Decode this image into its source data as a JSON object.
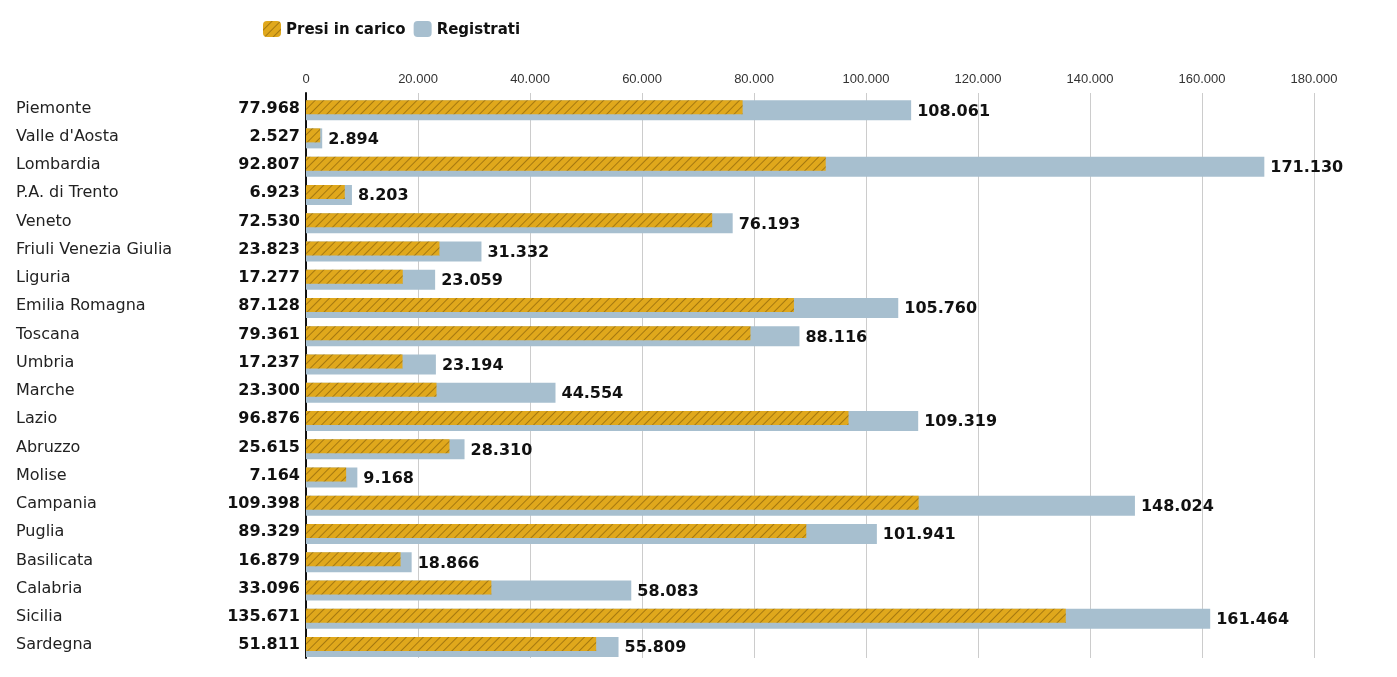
{
  "chart_data": {
    "type": "bar",
    "orientation": "horizontal",
    "categories": [
      "Piemonte",
      "Valle d'Aosta",
      "Lombardia",
      "P.A. di Trento",
      "Veneto",
      "Friuli Venezia Giulia",
      "Liguria",
      "Emilia Romagna",
      "Toscana",
      "Umbria",
      "Marche",
      "Lazio",
      "Abruzzo",
      "Molise",
      "Campania",
      "Puglia",
      "Basilicata",
      "Calabria",
      "Sicilia",
      "Sardegna"
    ],
    "series": [
      {
        "name": "Registrati",
        "color": "#a7bfcf",
        "values": [
          108061,
          2894,
          171130,
          8203,
          76193,
          31332,
          23059,
          105760,
          88116,
          23194,
          44554,
          109319,
          28310,
          9168,
          148024,
          101941,
          18866,
          58083,
          161464,
          55809
        ],
        "value_labels": [
          "108.061",
          "2.894",
          "171.130",
          "8.203",
          "76.193",
          "31.332",
          "23.059",
          "105.760",
          "88.116",
          "23.194",
          "44.554",
          "109.319",
          "28.310",
          "9.168",
          "148.024",
          "101.941",
          "18.866",
          "58.083",
          "161.464",
          "55.809"
        ]
      },
      {
        "name": "Presi in carico",
        "color": "#e0a81c",
        "values": [
          77968,
          2527,
          92807,
          6923,
          72530,
          23823,
          17277,
          87128,
          79361,
          17237,
          23300,
          96876,
          25615,
          7164,
          109398,
          89329,
          16879,
          33096,
          135671,
          51811
        ],
        "value_labels": [
          "77.968",
          "2.527",
          "92.807",
          "6.923",
          "72.530",
          "23.823",
          "17.277",
          "87.128",
          "79.361",
          "17.237",
          "23.300",
          "96.876",
          "25.615",
          "7.164",
          "109.398",
          "89.329",
          "16.879",
          "33.096",
          "135.671",
          "51.811"
        ]
      }
    ],
    "xlim": [
      0,
      180000
    ],
    "xticks": [
      {
        "value": 0,
        "label": "0"
      },
      {
        "value": 20000,
        "label": "20.000"
      },
      {
        "value": 40000,
        "label": "40.000"
      },
      {
        "value": 60000,
        "label": "60.000"
      },
      {
        "value": 80000,
        "label": "80.000"
      },
      {
        "value": 100000,
        "label": "100.000"
      },
      {
        "value": 120000,
        "label": "120.000"
      },
      {
        "value": 140000,
        "label": "140.000"
      },
      {
        "value": 160000,
        "label": "160.000"
      },
      {
        "value": 180000,
        "label": "180.000"
      }
    ],
    "grid": "x",
    "legend": "top"
  }
}
